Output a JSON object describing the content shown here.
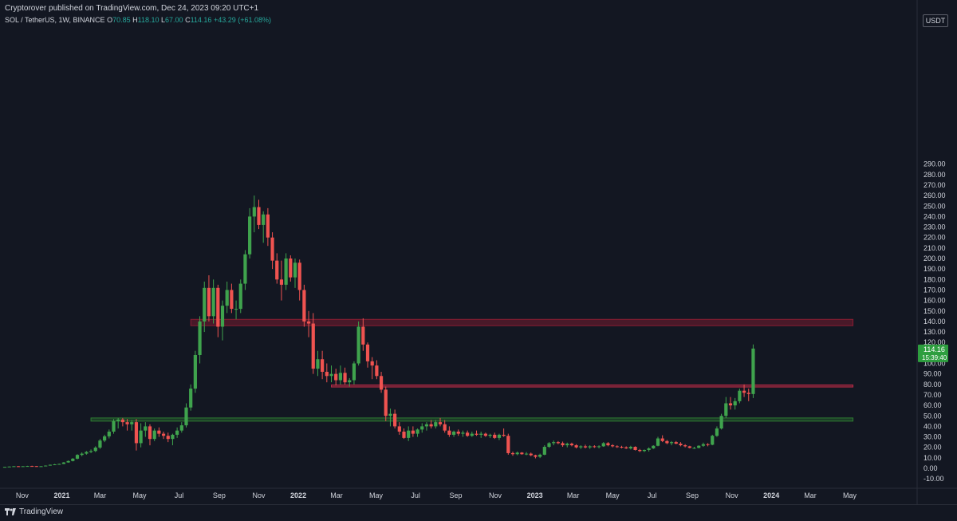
{
  "header": {
    "publish_line": "Cryptorover published on TradingView.com, Dec 24, 2023 09:20 UTC+1",
    "symbol": "SOL / TetherUS, 1W, BINANCE",
    "ohlc": {
      "o_label": "O",
      "o": "70.85",
      "h_label": "H",
      "h": "118.10",
      "l_label": "L",
      "l": "67.00",
      "c_label": "C",
      "c": "114.16",
      "change": "+43.29 (+61.08%)"
    }
  },
  "price_scale": {
    "currency": "USDT",
    "ticks": [
      "290.00",
      "280.00",
      "270.00",
      "260.00",
      "250.00",
      "240.00",
      "230.00",
      "220.00",
      "210.00",
      "200.00",
      "190.00",
      "180.00",
      "170.00",
      "160.00",
      "150.00",
      "140.00",
      "130.00",
      "120.00",
      "110.00",
      "100.00",
      "90.00",
      "80.00",
      "70.00",
      "60.00",
      "50.00",
      "40.00",
      "30.00",
      "20.00",
      "10.00",
      "0.00",
      "-10.00"
    ],
    "last_price": "114.16",
    "countdown": "15:39:40"
  },
  "time_axis": {
    "labels": [
      "Nov",
      "2021",
      "Mar",
      "May",
      "Jul",
      "Sep",
      "Nov",
      "2022",
      "Mar",
      "May",
      "Jul",
      "Sep",
      "Nov",
      "2023",
      "Mar",
      "May",
      "Jul",
      "Sep",
      "Nov",
      "2024",
      "Mar",
      "May"
    ],
    "bold": [
      "2021",
      "2022",
      "2023",
      "2024"
    ]
  },
  "chart_data": {
    "type": "candlestick",
    "interval": "1W",
    "ylim": [
      -13,
      295
    ],
    "grid": false,
    "x_start": "2020-10-05",
    "candles": [
      [
        1.3,
        1.4,
        1.2,
        1.4
      ],
      [
        1.4,
        1.8,
        1.3,
        1.7
      ],
      [
        1.7,
        2.1,
        1.6,
        2.0
      ],
      [
        2.0,
        2.2,
        1.8,
        1.9
      ],
      [
        1.9,
        2.1,
        1.8,
        2.0
      ],
      [
        2.0,
        2.4,
        1.9,
        2.2
      ],
      [
        2.2,
        2.5,
        2.0,
        2.1
      ],
      [
        2.1,
        2.3,
        1.8,
        1.9
      ],
      [
        1.9,
        2.2,
        1.7,
        2.0
      ],
      [
        2.0,
        2.8,
        1.9,
        2.6
      ],
      [
        2.6,
        3.6,
        2.5,
        3.4
      ],
      [
        3.4,
        4.2,
        3.1,
        3.8
      ],
      [
        3.8,
        4.5,
        3.6,
        4.2
      ],
      [
        4.2,
        6.0,
        4.0,
        5.6
      ],
      [
        5.6,
        7.5,
        5.3,
        7.0
      ],
      [
        7.0,
        9.8,
        6.6,
        9.2
      ],
      [
        9.2,
        13.5,
        8.6,
        12.8
      ],
      [
        12.8,
        15.2,
        11.5,
        14.0
      ],
      [
        14.0,
        16.5,
        13.0,
        15.6
      ],
      [
        15.6,
        18.0,
        14.5,
        16.5
      ],
      [
        16.5,
        21.0,
        15.5,
        19.8
      ],
      [
        19.8,
        28.0,
        18.5,
        26.5
      ],
      [
        26.5,
        32.0,
        25.0,
        30.5
      ],
      [
        30.5,
        37.0,
        28.5,
        35.0
      ],
      [
        35.0,
        47.0,
        33.0,
        45.0
      ],
      [
        45.0,
        48.0,
        38.0,
        46.5
      ],
      [
        46.5,
        48.0,
        40.0,
        44.0
      ],
      [
        44.0,
        47.0,
        36.0,
        42.0
      ],
      [
        42.0,
        46.0,
        36.0,
        44.0
      ],
      [
        44.0,
        47.0,
        17.0,
        24.0
      ],
      [
        24.0,
        43.0,
        20.0,
        36.0
      ],
      [
        36.0,
        44.0,
        30.0,
        40.0
      ],
      [
        40.0,
        42.0,
        22.0,
        28.0
      ],
      [
        28.0,
        38.0,
        26.0,
        36.0
      ],
      [
        36.0,
        39.0,
        30.0,
        33.0
      ],
      [
        33.0,
        35.0,
        28.0,
        31.0
      ],
      [
        31.0,
        34.0,
        25.0,
        28.0
      ],
      [
        28.0,
        33.0,
        22.0,
        32.0
      ],
      [
        32.0,
        39.0,
        29.0,
        36.0
      ],
      [
        36.0,
        44.0,
        34.0,
        41.0
      ],
      [
        41.0,
        62.0,
        39.0,
        58.0
      ],
      [
        58.0,
        80.0,
        55.0,
        76.0
      ],
      [
        76.0,
        112.0,
        72.0,
        108.0
      ],
      [
        108.0,
        145.0,
        100.0,
        140.0
      ],
      [
        140.0,
        178.0,
        130.0,
        172.0
      ],
      [
        172.0,
        184.0,
        140.0,
        145.0
      ],
      [
        145.0,
        180.0,
        138.0,
        172.0
      ],
      [
        172.0,
        175.0,
        125.0,
        135.0
      ],
      [
        135.0,
        160.0,
        122.0,
        155.0
      ],
      [
        155.0,
        178.0,
        148.0,
        170.0
      ],
      [
        170.0,
        176.0,
        148.0,
        152.0
      ],
      [
        152.0,
        160.0,
        142.0,
        152.0
      ],
      [
        152.0,
        180.0,
        148.0,
        176.0
      ],
      [
        176.0,
        208.0,
        170.0,
        204.0
      ],
      [
        204.0,
        248.0,
        200.0,
        240.0
      ],
      [
        240.0,
        260.0,
        225.0,
        249.0
      ],
      [
        249.0,
        256.0,
        228.0,
        232.0
      ],
      [
        232.0,
        245.0,
        215.0,
        242.0
      ],
      [
        242.0,
        248.0,
        212.0,
        220.0
      ],
      [
        220.0,
        225.0,
        190.0,
        198.0
      ],
      [
        198.0,
        205.0,
        176.0,
        180.0
      ],
      [
        180.0,
        198.0,
        160.0,
        175.0
      ],
      [
        175.0,
        205.0,
        170.0,
        200.0
      ],
      [
        200.0,
        203.0,
        178.0,
        182.0
      ],
      [
        182.0,
        200.0,
        172.0,
        196.0
      ],
      [
        196.0,
        199.0,
        160.0,
        170.0
      ],
      [
        170.0,
        175.0,
        135.0,
        140.0
      ],
      [
        140.0,
        150.0,
        125.0,
        138.0
      ],
      [
        138.0,
        148.0,
        90.0,
        95.0
      ],
      [
        95.0,
        112.0,
        88.0,
        104.0
      ],
      [
        104.0,
        112.0,
        85.0,
        92.0
      ],
      [
        92.0,
        100.0,
        82.0,
        88.0
      ],
      [
        88.0,
        98.0,
        82.0,
        90.0
      ],
      [
        90.0,
        95.0,
        79.0,
        84.0
      ],
      [
        84.0,
        98.0,
        80.0,
        91.0
      ],
      [
        91.0,
        96.0,
        80.0,
        82.0
      ],
      [
        82.0,
        86.0,
        78.0,
        84.0
      ],
      [
        84.0,
        102.0,
        80.0,
        100.0
      ],
      [
        100.0,
        140.0,
        98.0,
        135.0
      ],
      [
        135.0,
        143.0,
        112.0,
        118.0
      ],
      [
        118.0,
        120.0,
        96.0,
        102.0
      ],
      [
        102.0,
        106.0,
        85.0,
        98.0
      ],
      [
        98.0,
        103.0,
        85.0,
        88.0
      ],
      [
        88.0,
        92.0,
        72.0,
        75.0
      ],
      [
        75.0,
        78.0,
        45.0,
        50.0
      ],
      [
        50.0,
        57.0,
        40.0,
        52.0
      ],
      [
        52.0,
        56.0,
        38.0,
        40.0
      ],
      [
        40.0,
        44.0,
        32.0,
        35.0
      ],
      [
        35.0,
        38.0,
        28.0,
        29.0
      ],
      [
        29.0,
        40.0,
        26.0,
        36.0
      ],
      [
        36.0,
        40.0,
        30.0,
        33.0
      ],
      [
        33.0,
        38.0,
        30.0,
        37.0
      ],
      [
        37.0,
        43.0,
        34.0,
        40.0
      ],
      [
        40.0,
        44.0,
        36.0,
        42.0
      ],
      [
        42.0,
        46.0,
        38.0,
        40.0
      ],
      [
        40.0,
        46.0,
        38.0,
        44.0
      ],
      [
        44.0,
        48.0,
        40.0,
        42.0
      ],
      [
        42.0,
        46.0,
        34.0,
        36.0
      ],
      [
        36.0,
        40.0,
        30.0,
        32.0
      ],
      [
        32.0,
        36.0,
        30.0,
        35.0
      ],
      [
        35.0,
        37.0,
        31.0,
        33.0
      ],
      [
        33.0,
        36.0,
        30.0,
        34.0
      ],
      [
        34.0,
        36.0,
        30.0,
        31.0
      ],
      [
        31.0,
        35.0,
        30.0,
        33.0
      ],
      [
        33.0,
        36.0,
        31.0,
        32.0
      ],
      [
        32.0,
        35.0,
        29.0,
        33.0
      ],
      [
        33.0,
        34.0,
        30.0,
        31.0
      ],
      [
        31.0,
        33.0,
        29.0,
        32.0
      ],
      [
        32.0,
        34.0,
        28.0,
        29.0
      ],
      [
        29.0,
        33.0,
        27.0,
        32.0
      ],
      [
        32.0,
        38.0,
        30.0,
        31.0
      ],
      [
        31.0,
        33.0,
        13.0,
        14.5
      ],
      [
        14.5,
        16.0,
        12.0,
        13.5
      ],
      [
        13.5,
        16.0,
        12.5,
        15.0
      ],
      [
        15.0,
        15.5,
        13.0,
        13.5
      ],
      [
        13.5,
        15.5,
        12.5,
        14.0
      ],
      [
        14.0,
        15.0,
        11.5,
        12.5
      ],
      [
        12.5,
        13.0,
        9.5,
        11.0
      ],
      [
        11.0,
        14.0,
        9.8,
        13.0
      ],
      [
        13.0,
        22.0,
        12.5,
        20.5
      ],
      [
        20.5,
        25.0,
        19.5,
        24.0
      ],
      [
        24.0,
        26.5,
        22.0,
        25.0
      ],
      [
        25.0,
        26.0,
        23.0,
        24.0
      ],
      [
        24.0,
        25.5,
        20.5,
        22.0
      ],
      [
        22.0,
        24.5,
        20.0,
        23.5
      ],
      [
        23.5,
        24.5,
        21.0,
        22.0
      ],
      [
        22.0,
        23.0,
        19.0,
        20.0
      ],
      [
        20.0,
        22.0,
        18.5,
        21.0
      ],
      [
        21.0,
        22.5,
        19.0,
        20.0
      ],
      [
        20.0,
        22.0,
        18.5,
        21.0
      ],
      [
        21.0,
        22.0,
        19.5,
        20.5
      ],
      [
        20.5,
        22.0,
        19.0,
        21.0
      ],
      [
        21.0,
        25.0,
        20.5,
        24.0
      ],
      [
        24.0,
        25.0,
        21.0,
        22.0
      ],
      [
        22.0,
        23.0,
        20.0,
        21.0
      ],
      [
        21.0,
        22.0,
        19.5,
        20.5
      ],
      [
        20.5,
        21.5,
        19.0,
        20.0
      ],
      [
        20.0,
        21.0,
        18.5,
        19.0
      ],
      [
        19.0,
        21.5,
        18.0,
        20.5
      ],
      [
        20.5,
        21.0,
        17.0,
        17.5
      ],
      [
        17.5,
        18.5,
        15.5,
        16.5
      ],
      [
        16.5,
        18.0,
        15.5,
        17.5
      ],
      [
        17.5,
        20.0,
        16.0,
        19.0
      ],
      [
        19.0,
        22.0,
        18.5,
        21.5
      ],
      [
        21.5,
        30.0,
        21.0,
        28.5
      ],
      [
        28.5,
        31.5,
        25.0,
        26.0
      ],
      [
        26.0,
        27.0,
        23.0,
        24.0
      ],
      [
        24.0,
        26.0,
        22.0,
        25.0
      ],
      [
        25.0,
        26.0,
        23.0,
        23.5
      ],
      [
        23.5,
        25.0,
        21.0,
        22.0
      ],
      [
        22.0,
        23.0,
        20.0,
        21.0
      ],
      [
        21.0,
        21.5,
        19.0,
        19.5
      ],
      [
        19.5,
        20.5,
        18.5,
        19.5
      ],
      [
        19.5,
        22.0,
        19.0,
        21.5
      ],
      [
        21.5,
        24.5,
        20.5,
        23.0
      ],
      [
        23.0,
        24.0,
        21.0,
        22.5
      ],
      [
        22.5,
        32.0,
        22.0,
        31.0
      ],
      [
        31.0,
        40.0,
        30.0,
        38.0
      ],
      [
        38.0,
        52.0,
        37.0,
        50.0
      ],
      [
        50.0,
        68.0,
        48.0,
        62.0
      ],
      [
        62.0,
        68.0,
        56.0,
        60.0
      ],
      [
        60.0,
        67.0,
        56.0,
        64.0
      ],
      [
        64.0,
        76.0,
        62.0,
        74.0
      ],
      [
        74.0,
        80.0,
        68.0,
        72.0
      ],
      [
        72.0,
        76.0,
        64.0,
        70.85
      ],
      [
        70.85,
        118.1,
        67.0,
        114.16
      ]
    ],
    "zones": [
      {
        "kind": "resistance",
        "from": "2021-07-19",
        "to": "2024-05-06",
        "low": 136,
        "high": 142,
        "color": "#8b1d33"
      },
      {
        "kind": "resistance",
        "from": "2022-02-21",
        "to": "2024-05-06",
        "low": 77.5,
        "high": 79.5,
        "color": "#b52a45"
      },
      {
        "kind": "support",
        "from": "2021-02-15",
        "to": "2024-05-06",
        "low": 45,
        "high": 48,
        "color": "#2e7d32"
      }
    ],
    "colors": {
      "up": "#26a69a",
      "up_bar": "#3fa34d",
      "down": "#ef5350",
      "background": "#131722",
      "text": "#d1d4dc",
      "last_price_bg": "#2e9e3f"
    }
  },
  "footer": {
    "brand": "TradingView"
  }
}
